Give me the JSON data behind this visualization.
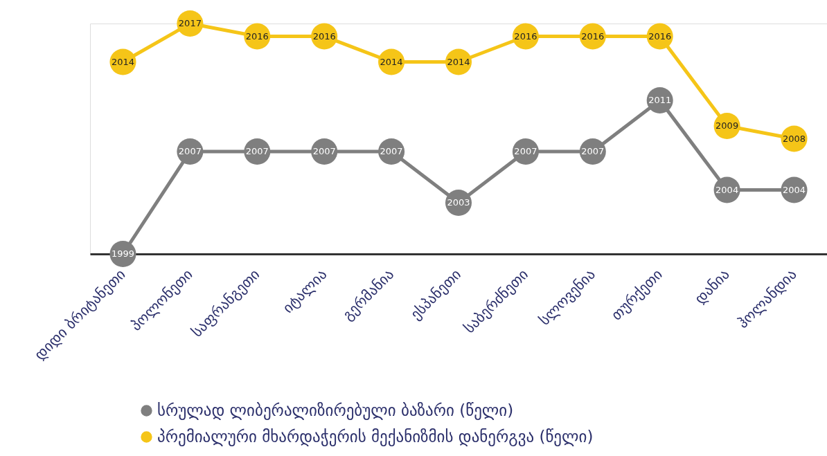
{
  "chart_data": {
    "type": "line",
    "categories": [
      "დიდი ბრიტანეთი",
      "პოლონეთი",
      "საფრანგეთი",
      "იტალია",
      "გერმანია",
      "ესპანეთი",
      "საბერძნეთი",
      "სლოვენია",
      "თურქეთი",
      "დანია",
      "ჰოლანდია"
    ],
    "series": [
      {
        "name": "სრულად ლიბერალიზირებული ბაზარი (წელი)",
        "color": "#7f7f7f",
        "values": [
          1999,
          2007,
          2007,
          2007,
          2007,
          2003,
          2007,
          2007,
          2011,
          2004,
          2004
        ]
      },
      {
        "name": "პრემიალური მხარდაჭერის მექანიზმის დანერგვა (წელი)",
        "color": "#f5c518",
        "values": [
          2014,
          2017,
          2016,
          2016,
          2014,
          2014,
          2016,
          2016,
          2016,
          2009,
          2008
        ]
      }
    ],
    "ylim": [
      1999,
      2017
    ],
    "data_labels": true,
    "marker": "circle",
    "grid": false,
    "legend": "bottom",
    "tick_labels": "x"
  }
}
